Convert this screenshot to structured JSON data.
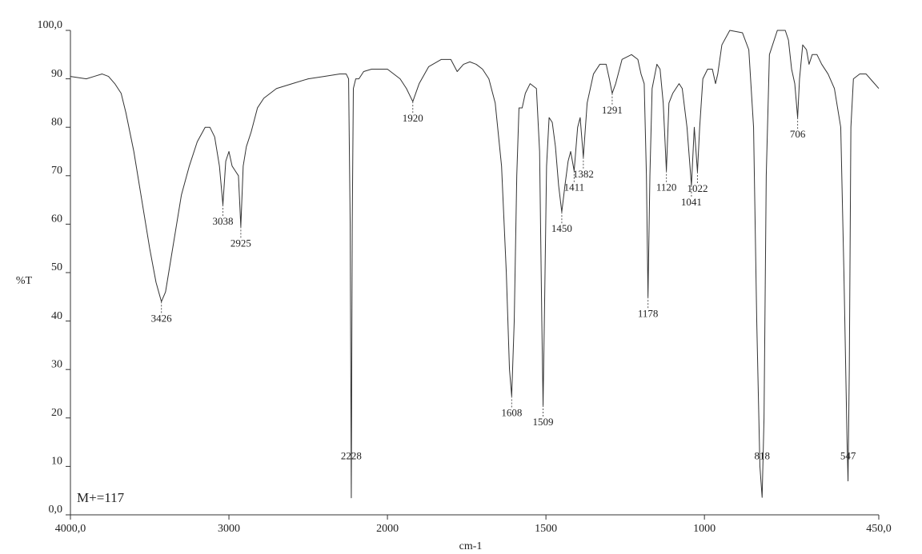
{
  "chart_data": {
    "type": "line",
    "xlabel": "cm-1",
    "ylabel": "%T",
    "annotation": "M+=117",
    "xlim": [
      4000,
      450
    ],
    "xscale": {
      "break": 2000,
      "factor": 2
    },
    "xticks": [
      {
        "value": 4000,
        "label": "4000,0"
      },
      3000,
      2000,
      1500,
      1000,
      {
        "value": 450,
        "label": "450,0"
      }
    ],
    "ylim": [
      0,
      100
    ],
    "yticks": [
      {
        "value": 0,
        "label": "0,0"
      },
      10,
      20,
      30,
      40,
      50,
      60,
      70,
      80,
      90,
      {
        "value": 100,
        "label": "100,0"
      }
    ],
    "color": "#333333",
    "x": [
      4000,
      3900,
      3850,
      3800,
      3760,
      3720,
      3680,
      3650,
      3600,
      3550,
      3500,
      3460,
      3426,
      3400,
      3370,
      3330,
      3300,
      3250,
      3200,
      3150,
      3120,
      3090,
      3060,
      3038,
      3020,
      3000,
      2980,
      2960,
      2940,
      2925,
      2910,
      2890,
      2860,
      2820,
      2780,
      2700,
      2600,
      2500,
      2400,
      2300,
      2260,
      2245,
      2235,
      2228,
      2222,
      2215,
      2200,
      2180,
      2150,
      2100,
      2050,
      2000,
      1960,
      1940,
      1920,
      1900,
      1870,
      1830,
      1800,
      1780,
      1760,
      1740,
      1720,
      1700,
      1680,
      1660,
      1640,
      1625,
      1615,
      1608,
      1600,
      1592,
      1585,
      1575,
      1565,
      1550,
      1530,
      1520,
      1513,
      1509,
      1505,
      1498,
      1490,
      1480,
      1470,
      1460,
      1450,
      1440,
      1430,
      1422,
      1411,
      1400,
      1392,
      1382,
      1370,
      1350,
      1330,
      1310,
      1300,
      1291,
      1280,
      1260,
      1230,
      1210,
      1200,
      1190,
      1183,
      1178,
      1172,
      1165,
      1150,
      1140,
      1130,
      1120,
      1112,
      1100,
      1080,
      1070,
      1055,
      1041,
      1032,
      1022,
      1015,
      1005,
      990,
      975,
      965,
      958,
      945,
      920,
      880,
      860,
      845,
      835,
      825,
      818,
      812,
      805,
      795,
      770,
      745,
      735,
      725,
      715,
      706,
      700,
      690,
      678,
      670,
      660,
      645,
      630,
      610,
      590,
      570,
      560,
      550,
      547,
      543,
      538,
      530,
      510,
      490,
      470,
      450
    ],
    "values": [
      90.5,
      90,
      90.5,
      91,
      90.5,
      89,
      87,
      83,
      75,
      65,
      55,
      48,
      44,
      46,
      52,
      60,
      66,
      72,
      77,
      80,
      80,
      78,
      72,
      64,
      73,
      75,
      72,
      71,
      70,
      59.5,
      72,
      76,
      79,
      84,
      86,
      88,
      89,
      90,
      90.5,
      91,
      91,
      90,
      60,
      3.5,
      60,
      88,
      90,
      90,
      91.5,
      92,
      92,
      92,
      90,
      88,
      85.3,
      89,
      92.5,
      94,
      94,
      91.5,
      93,
      93.5,
      93,
      92,
      90,
      85,
      72,
      50,
      30,
      24.5,
      40,
      70,
      84,
      84,
      87,
      89,
      88,
      75,
      40,
      22.6,
      40,
      72,
      82,
      81,
      76,
      68,
      62.5,
      68,
      73,
      75,
      71,
      80,
      82,
      73.8,
      85,
      91,
      93,
      93,
      90,
      87,
      89,
      94,
      95,
      94,
      91,
      89,
      70,
      45,
      70,
      88,
      93,
      92,
      85,
      71,
      85,
      87,
      89,
      88,
      80,
      68,
      80,
      70.8,
      80,
      90,
      92,
      92,
      89,
      91,
      97,
      100,
      99.5,
      96,
      80,
      40,
      10,
      3.6,
      20,
      70,
      95,
      100,
      100,
      98,
      92,
      89,
      82,
      90,
      97,
      96,
      93,
      95,
      95,
      93,
      91,
      88,
      80,
      50,
      15,
      7,
      30,
      80,
      90,
      91,
      91,
      89.5,
      88
    ],
    "peaks": [
      {
        "x": 3426,
        "y": 44
      },
      {
        "x": 3038,
        "y": 64
      },
      {
        "x": 2925,
        "y": 59.5
      },
      {
        "x": 2228,
        "y": 3.5
      },
      {
        "x": 1920,
        "y": 85.3
      },
      {
        "x": 1608,
        "y": 24.5
      },
      {
        "x": 1509,
        "y": 22.6
      },
      {
        "x": 1450,
        "y": 62.5
      },
      {
        "x": 1411,
        "y": 71
      },
      {
        "x": 1382,
        "y": 73.8
      },
      {
        "x": 1291,
        "y": 87
      },
      {
        "x": 1178,
        "y": 45
      },
      {
        "x": 1120,
        "y": 71
      },
      {
        "x": 1041,
        "y": 68
      },
      {
        "x": 1022,
        "y": 70.8
      },
      {
        "x": 818,
        "y": 3.6
      },
      {
        "x": 706,
        "y": 82
      },
      {
        "x": 547,
        "y": 7
      }
    ]
  }
}
